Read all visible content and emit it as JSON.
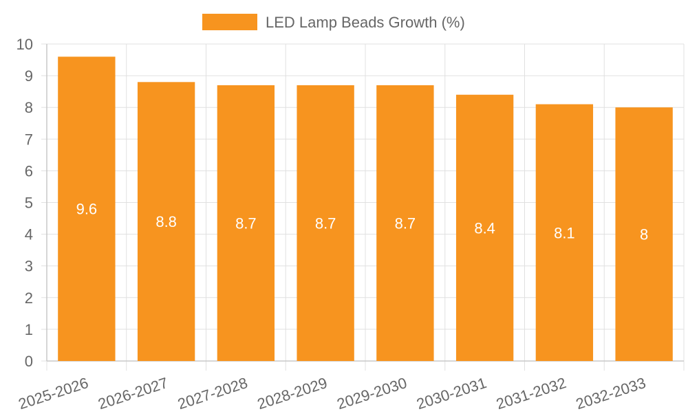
{
  "chart_data": {
    "type": "bar",
    "title": "",
    "xlabel": "",
    "ylabel": "",
    "categories": [
      "2025-2026",
      "2026-2027",
      "2027-2028",
      "2028-2029",
      "2029-2030",
      "2030-2031",
      "2031-2032",
      "2032-2033"
    ],
    "series": [
      {
        "name": "LED Lamp Beads Growth (%)",
        "values": [
          9.6,
          8.8,
          8.7,
          8.7,
          8.7,
          8.4,
          8.1,
          8
        ],
        "color": "#f7941f"
      }
    ],
    "ylim": [
      0,
      10
    ],
    "yticks": [
      0,
      1,
      2,
      3,
      4,
      5,
      6,
      7,
      8,
      9,
      10
    ],
    "grid": true,
    "legend": "top-center",
    "data_labels": true
  }
}
